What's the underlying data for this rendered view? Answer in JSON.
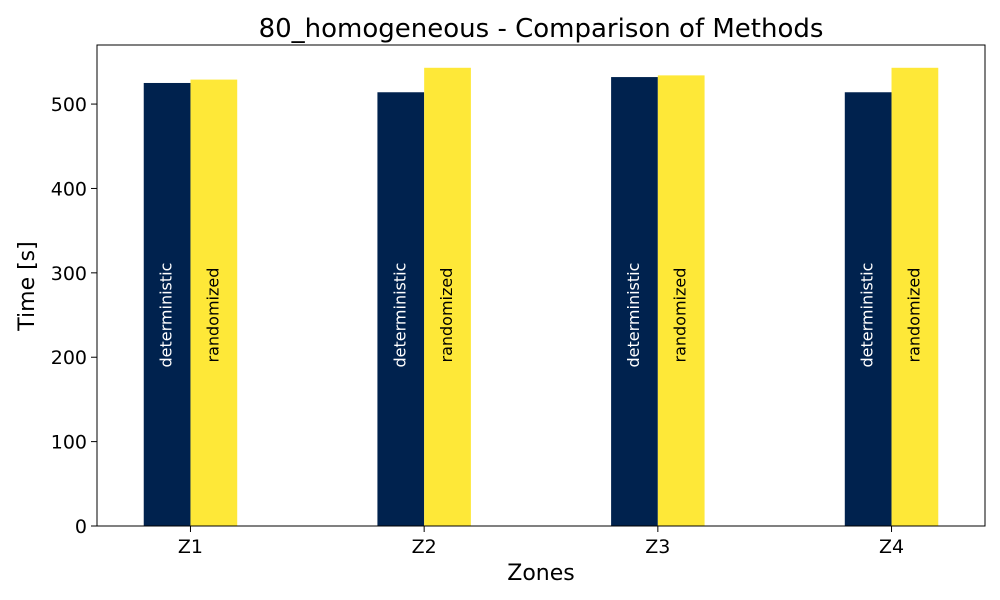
{
  "chart_data": {
    "type": "bar",
    "title": "80_homogeneous - Comparison of Methods",
    "xlabel": "Zones",
    "ylabel": "Time [s]",
    "categories": [
      "Z1",
      "Z2",
      "Z3",
      "Z4"
    ],
    "ylim": [
      0,
      570
    ],
    "yticks": [
      0,
      100,
      200,
      300,
      400,
      500
    ],
    "series": [
      {
        "name": "deterministic",
        "color": "#00224e",
        "label_color": "#ffffff",
        "values": [
          525,
          514,
          532,
          514
        ]
      },
      {
        "name": "randomized",
        "color": "#fee838",
        "label_color": "#000000",
        "values": [
          529,
          543,
          534,
          543
        ]
      }
    ],
    "grid": false,
    "legend": "none"
  }
}
